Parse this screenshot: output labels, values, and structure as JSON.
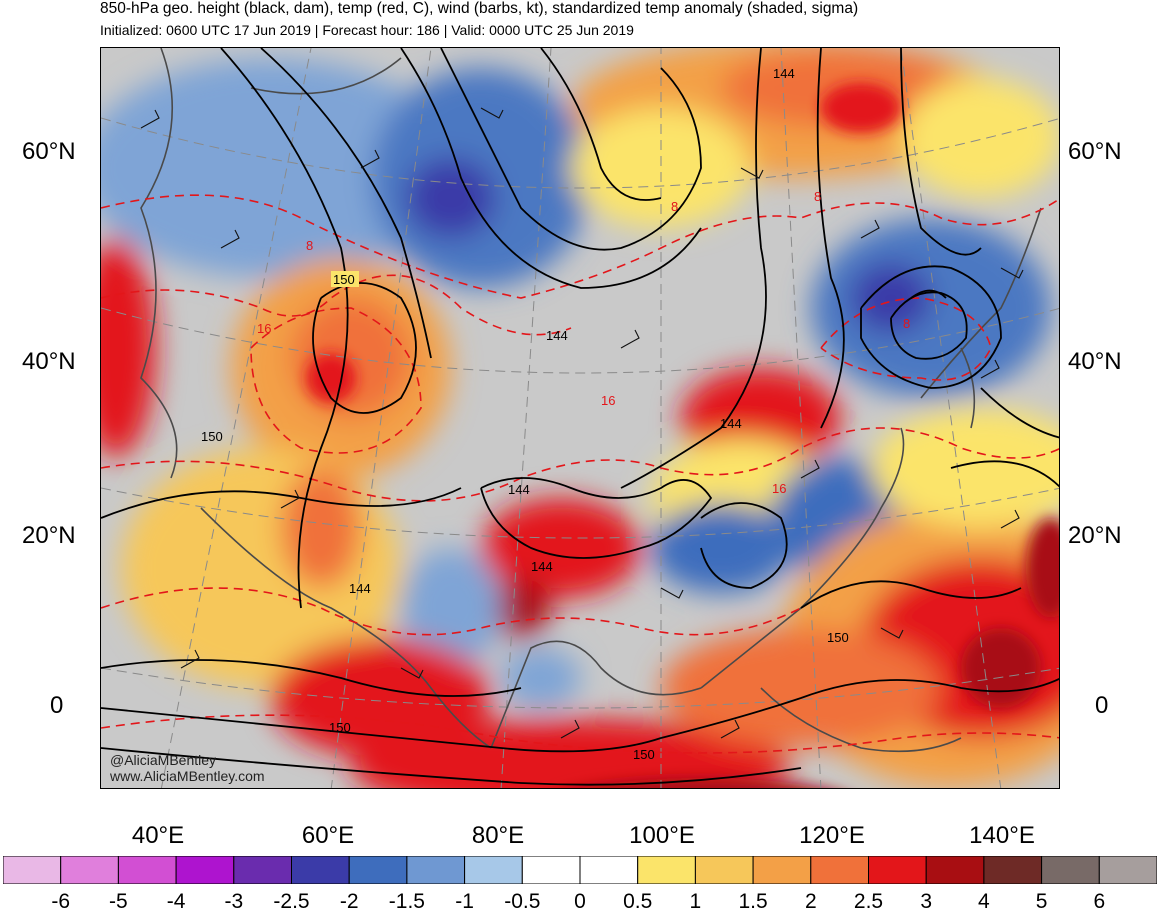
{
  "titles": {
    "line1": "850-hPa geo. height (black, dam), temp (red, C), wind (barbs, kt), standardized temp anomaly (shaded, sigma)",
    "line2": "Initialized: 0600 UTC 17 Jun 2019 | Forecast hour: 186 | Valid: 0000 UTC 25 Jun 2019"
  },
  "lat_labels": [
    "60°N",
    "40°N",
    "20°N",
    "0"
  ],
  "lon_labels": [
    "40°E",
    "60°E",
    "80°E",
    "100°E",
    "120°E",
    "140°E"
  ],
  "contour_labels": {
    "height": [
      "150",
      "144",
      "144",
      "150",
      "144",
      "144",
      "144",
      "144",
      "150",
      "150",
      "150"
    ],
    "temp": [
      "8",
      "16",
      "8",
      "8",
      "16",
      "16",
      "8"
    ]
  },
  "credits": [
    "@AliciaMBentley",
    "www.AliciaMBentley.com"
  ],
  "colorbar": {
    "labels": [
      "-6",
      "-5",
      "-4",
      "-3",
      "-2.5",
      "-2",
      "-1.5",
      "-1",
      "-0.5",
      "0",
      "0.5",
      "1",
      "1.5",
      "2",
      "2.5",
      "3",
      "4",
      "5",
      "6"
    ],
    "colors": [
      "#e9b8e6",
      "#e07fdc",
      "#d24fd3",
      "#ae14cf",
      "#6a2cae",
      "#3b3ba8",
      "#3e6dbd",
      "#6f98d2",
      "#a7c8e8",
      "#ffffff",
      "#ffffff",
      "#fbe46a",
      "#f6c75a",
      "#f3a047",
      "#f0713a",
      "#e3161a",
      "#a80e12",
      "#6e2a26",
      "#786a67",
      "#a69e9d"
    ]
  }
}
